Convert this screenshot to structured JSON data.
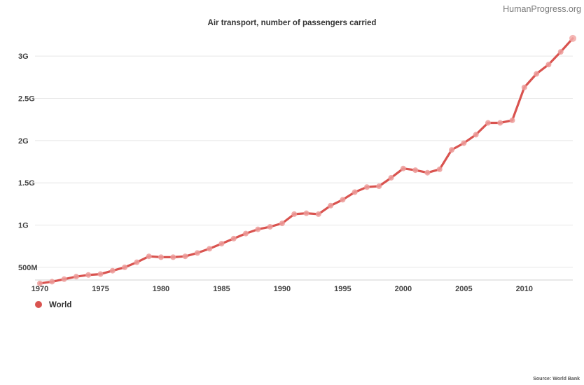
{
  "watermark": "HumanProgress.org",
  "source": "Source: World Bank",
  "colors": {
    "series": "#d9534f",
    "grid": "#e6e6e6"
  },
  "chart_data": {
    "type": "line",
    "title": "Air transport, number of passengers carried",
    "xlabel": "",
    "ylabel": "",
    "xlim": [
      1970,
      2014
    ],
    "ylim": [
      350,
      3250
    ],
    "x_ticks": [
      1970,
      1975,
      1980,
      1985,
      1990,
      1995,
      2000,
      2005,
      2010
    ],
    "x_tick_labels": [
      "1970",
      "1975",
      "1980",
      "1985",
      "1990",
      "1995",
      "2000",
      "2005",
      "2010"
    ],
    "y_ticks": [
      500,
      1000,
      1500,
      2000,
      2500,
      3000
    ],
    "y_tick_labels": [
      "500M",
      "1G",
      "1.5G",
      "2G",
      "2.5G",
      "3G"
    ],
    "y_unit": "millions of passengers",
    "grid": true,
    "legend_position": "bottom-left",
    "x": [
      1970,
      1971,
      1972,
      1973,
      1974,
      1975,
      1976,
      1977,
      1978,
      1979,
      1980,
      1981,
      1982,
      1983,
      1984,
      1985,
      1986,
      1987,
      1988,
      1989,
      1990,
      1991,
      1992,
      1993,
      1994,
      1995,
      1996,
      1997,
      1998,
      1999,
      2000,
      2001,
      2002,
      2003,
      2004,
      2005,
      2006,
      2007,
      2008,
      2009,
      2010,
      2011,
      2012,
      2013,
      2014
    ],
    "series": [
      {
        "name": "World",
        "values": [
          310,
          330,
          360,
          390,
          410,
          420,
          460,
          500,
          560,
          630,
          620,
          620,
          630,
          670,
          720,
          780,
          840,
          900,
          950,
          980,
          1020,
          1130,
          1140,
          1130,
          1230,
          1300,
          1390,
          1450,
          1460,
          1560,
          1670,
          1650,
          1620,
          1660,
          1890,
          1970,
          2070,
          2210,
          2210,
          2240,
          2630,
          2790,
          2900,
          3050,
          3210
        ]
      }
    ]
  }
}
